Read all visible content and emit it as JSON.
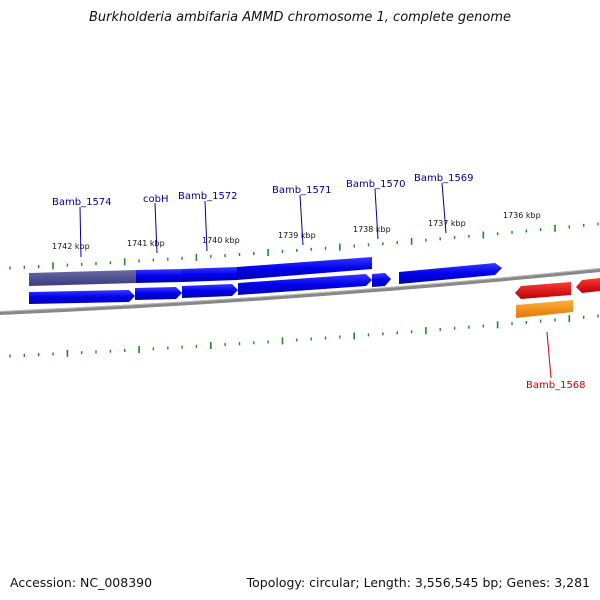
{
  "title": "Burkholderia ambifaria AMMD chromosome 1, complete genome",
  "footer": {
    "accession": "Accession: NC_008390",
    "summary": "Topology: circular; Length: 3,556,545 bp; Genes: 3,281"
  },
  "scale_labels": [
    "1742 kbp",
    "1741 kbp",
    "1740 kbp",
    "1739 kbp",
    "1738 kbp",
    "1737 kbp",
    "1736 kbp"
  ],
  "gene_labels_forward": [
    "Bamb_1574",
    "cobH",
    "Bamb_1572",
    "Bamb_1571",
    "Bamb_1570",
    "Bamb_1569"
  ],
  "gene_labels_reverse": [
    "Bamb_1568"
  ],
  "colors": {
    "forward_gene": "#0000ee",
    "selected_gene": "#4a4a8a",
    "reverse_gene": "#ee0000",
    "orange_gene": "#ff9900",
    "backbone": "#888888",
    "ticks": "#228822",
    "label_forward": "#000099",
    "label_reverse": "#cc0000"
  }
}
